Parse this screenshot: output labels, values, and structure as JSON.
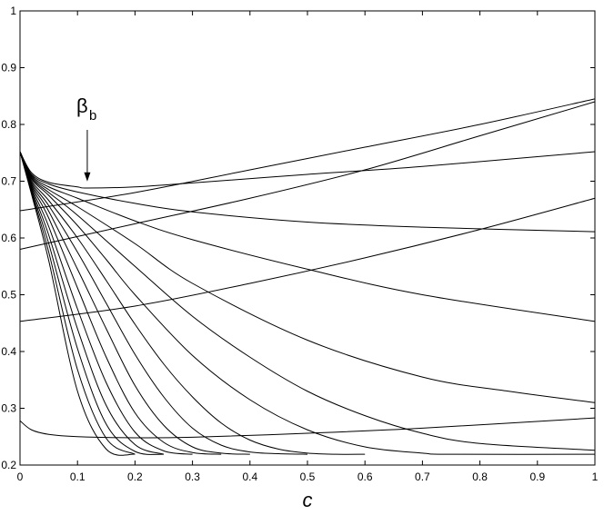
{
  "chart_data": {
    "type": "line",
    "title": "",
    "xlabel": "c",
    "ylabel": "",
    "xlim": [
      0,
      1
    ],
    "ylim": [
      0.2,
      1
    ],
    "grid": false,
    "xticks": [
      "0",
      "0.1",
      "0.2",
      "0.3",
      "0.4",
      "0.5",
      "0.6",
      "0.7",
      "0.8",
      "0.9",
      "1"
    ],
    "yticks": [
      "0.2",
      "0.3",
      "0.4",
      "0.5",
      "0.6",
      "0.7",
      "0.8",
      "0.9",
      "1"
    ],
    "xtick_values": [
      0,
      0.1,
      0.2,
      0.3,
      0.4,
      0.5,
      0.6,
      0.7,
      0.8,
      0.9,
      1
    ],
    "ytick_values": [
      0.2,
      0.3,
      0.4,
      0.5,
      0.6,
      0.7,
      0.8,
      0.9,
      1
    ],
    "annotation": {
      "symbol": "β",
      "subscript": "b",
      "points_to": {
        "x": 0.117,
        "y": 0.69
      }
    },
    "series": [
      {
        "x": [
          0,
          0.02,
          0.05,
          0.1,
          0.2,
          0.3,
          0.5,
          0.7,
          1.0
        ],
        "y": [
          0.278,
          0.262,
          0.254,
          0.25,
          0.248,
          0.249,
          0.256,
          0.265,
          0.283
        ]
      },
      {
        "x": [
          0,
          0.2,
          0.4,
          0.6,
          0.8,
          1.0
        ],
        "y": [
          0.453,
          0.48,
          0.52,
          0.565,
          0.615,
          0.67
        ]
      },
      {
        "x": [
          0,
          0.2,
          0.4,
          0.6,
          0.8,
          1.0
        ],
        "y": [
          0.58,
          0.625,
          0.67,
          0.72,
          0.78,
          0.84
        ]
      },
      {
        "x": [
          0,
          0.2,
          0.4,
          0.6,
          0.8,
          1.0
        ],
        "y": [
          0.648,
          0.68,
          0.72,
          0.76,
          0.8,
          0.845
        ]
      },
      {
        "x": [
          0,
          0.02,
          0.05,
          0.1,
          0.117,
          0.2,
          0.3,
          0.5,
          0.7,
          1.0
        ],
        "y": [
          0.752,
          0.715,
          0.698,
          0.69,
          0.688,
          0.69,
          0.697,
          0.712,
          0.726,
          0.752
        ]
      },
      {
        "x": [
          0,
          0.02,
          0.05,
          0.1,
          0.2,
          0.3,
          0.5,
          0.7,
          1.0
        ],
        "y": [
          0.752,
          0.712,
          0.695,
          0.681,
          0.661,
          0.646,
          0.628,
          0.619,
          0.611
        ]
      },
      {
        "x": [
          0,
          0.02,
          0.05,
          0.1,
          0.2,
          0.3,
          0.5,
          0.7,
          1.0
        ],
        "y": [
          0.752,
          0.71,
          0.69,
          0.67,
          0.63,
          0.597,
          0.545,
          0.5,
          0.453
        ]
      },
      {
        "x": [
          0,
          0.02,
          0.05,
          0.1,
          0.2,
          0.3,
          0.5,
          0.7,
          0.85,
          1.0
        ],
        "y": [
          0.752,
          0.708,
          0.685,
          0.655,
          0.59,
          0.52,
          0.42,
          0.355,
          0.33,
          0.31
        ]
      },
      {
        "x": [
          0,
          0.02,
          0.05,
          0.1,
          0.2,
          0.3,
          0.4,
          0.5,
          0.6,
          0.7,
          0.8,
          1.0
        ],
        "y": [
          0.752,
          0.706,
          0.68,
          0.64,
          0.55,
          0.462,
          0.39,
          0.33,
          0.287,
          0.256,
          0.238,
          0.226
        ]
      },
      {
        "x": [
          0,
          0.02,
          0.05,
          0.1,
          0.15,
          0.2,
          0.3,
          0.4,
          0.5,
          0.6,
          0.7,
          0.75,
          1.0
        ],
        "y": [
          0.752,
          0.704,
          0.675,
          0.622,
          0.562,
          0.5,
          0.393,
          0.315,
          0.262,
          0.232,
          0.221,
          0.219,
          0.219
        ]
      },
      {
        "x": [
          0,
          0.02,
          0.05,
          0.1,
          0.15,
          0.2,
          0.25,
          0.3,
          0.35,
          0.4,
          0.45,
          0.5,
          0.55,
          0.6
        ],
        "y": [
          0.752,
          0.701,
          0.666,
          0.6,
          0.525,
          0.448,
          0.378,
          0.32,
          0.274,
          0.244,
          0.228,
          0.221,
          0.219,
          0.219
        ]
      },
      {
        "x": [
          0,
          0.02,
          0.05,
          0.1,
          0.15,
          0.2,
          0.25,
          0.3,
          0.35,
          0.4,
          0.45,
          0.5
        ],
        "y": [
          0.752,
          0.698,
          0.657,
          0.575,
          0.485,
          0.395,
          0.32,
          0.265,
          0.235,
          0.223,
          0.22,
          0.219
        ]
      },
      {
        "x": [
          0,
          0.02,
          0.05,
          0.1,
          0.15,
          0.2,
          0.25,
          0.3,
          0.35,
          0.4
        ],
        "y": [
          0.752,
          0.695,
          0.647,
          0.545,
          0.44,
          0.34,
          0.27,
          0.232,
          0.221,
          0.219
        ]
      },
      {
        "x": [
          0,
          0.02,
          0.05,
          0.1,
          0.15,
          0.2,
          0.25,
          0.3,
          0.35
        ],
        "y": [
          0.752,
          0.692,
          0.635,
          0.512,
          0.39,
          0.292,
          0.24,
          0.222,
          0.219
        ]
      },
      {
        "x": [
          0,
          0.02,
          0.05,
          0.1,
          0.15,
          0.2,
          0.25,
          0.3
        ],
        "y": [
          0.752,
          0.689,
          0.62,
          0.475,
          0.345,
          0.258,
          0.225,
          0.219
        ]
      },
      {
        "x": [
          0,
          0.02,
          0.05,
          0.1,
          0.15,
          0.2,
          0.25
        ],
        "y": [
          0.752,
          0.686,
          0.605,
          0.44,
          0.305,
          0.236,
          0.219
        ]
      },
      {
        "x": [
          0,
          0.02,
          0.05,
          0.1,
          0.15,
          0.2,
          0.25
        ],
        "y": [
          0.752,
          0.683,
          0.59,
          0.405,
          0.272,
          0.224,
          0.219
        ]
      },
      {
        "x": [
          0,
          0.02,
          0.05,
          0.1,
          0.15,
          0.2
        ],
        "y": [
          0.752,
          0.68,
          0.575,
          0.368,
          0.247,
          0.219
        ]
      },
      {
        "x": [
          0,
          0.02,
          0.05,
          0.1,
          0.15,
          0.2
        ],
        "y": [
          0.752,
          0.677,
          0.56,
          0.33,
          0.228,
          0.219
        ]
      }
    ]
  }
}
